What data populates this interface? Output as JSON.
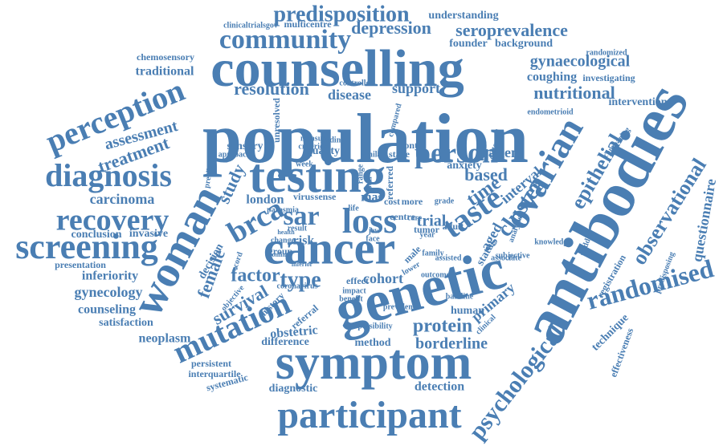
{
  "cloud": {
    "color": "#4a7eb3",
    "words": [
      "population",
      "counselling",
      "testing",
      "cancer",
      "genetic",
      "symptom",
      "antibodies",
      "woman",
      "ovarian",
      "loss",
      "taste",
      "participant",
      "mutation",
      "screening",
      "diagnosis",
      "perception",
      "recovery",
      "community",
      "brca",
      "sar",
      "person",
      "randomised",
      "observational",
      "epithelial",
      "psychological",
      "predisposition",
      "seroprevalence",
      "depression",
      "gynaecological",
      "nutritional",
      "resolution",
      "disease",
      "support",
      "protein",
      "borderline",
      "cohort",
      "factor",
      "type",
      "trial",
      "female",
      "survival",
      "study",
      "treatment",
      "assessment",
      "carcinoma",
      "conclusion",
      "invasive",
      "presentation",
      "inferiority",
      "gynecology",
      "counseling",
      "satisfaction",
      "neoplasm",
      "difference",
      "obstetric",
      "method",
      "effect",
      "detection",
      "diagnostic",
      "systematic",
      "persistent",
      "interquartile",
      "london",
      "risk",
      "time",
      "cluster",
      "interval",
      "aged",
      "based",
      "patient",
      "anxiety",
      "stage",
      "quality",
      "sensory",
      "approach",
      "unresolved",
      "month",
      "coughing",
      "investigating",
      "randomized",
      "founder",
      "background",
      "understanding",
      "clinicaltrialsgov",
      "multicentre",
      "chemosensory",
      "traditional",
      "controlled",
      "endometrioid",
      "intervention",
      "comparing",
      "questionnaire",
      "predisposing",
      "knowledge",
      "middle",
      "registration",
      "technique",
      "effectiveness",
      "primary",
      "clinical",
      "human",
      "adult",
      "tumor",
      "family",
      "mas",
      "cost",
      "more",
      "status",
      "associate",
      "decision",
      "record",
      "history",
      "objective",
      "group",
      "result",
      "referral",
      "coronavirus",
      "impact",
      "male",
      "centre",
      "year",
      "virus",
      "sense",
      "prevalent",
      "possibility",
      "referred",
      "distorted",
      "analysis",
      "subjective",
      "outcome",
      "baseline",
      "assisted",
      "grade",
      "total",
      "life",
      "jew",
      "face",
      "compared",
      "finding",
      "measure",
      "similar",
      "week",
      "parosmia",
      "prealbumin",
      "criterion",
      "range",
      "data",
      "benefit",
      "lower",
      "care",
      "change",
      "health",
      "online",
      "inferior"
    ]
  }
}
